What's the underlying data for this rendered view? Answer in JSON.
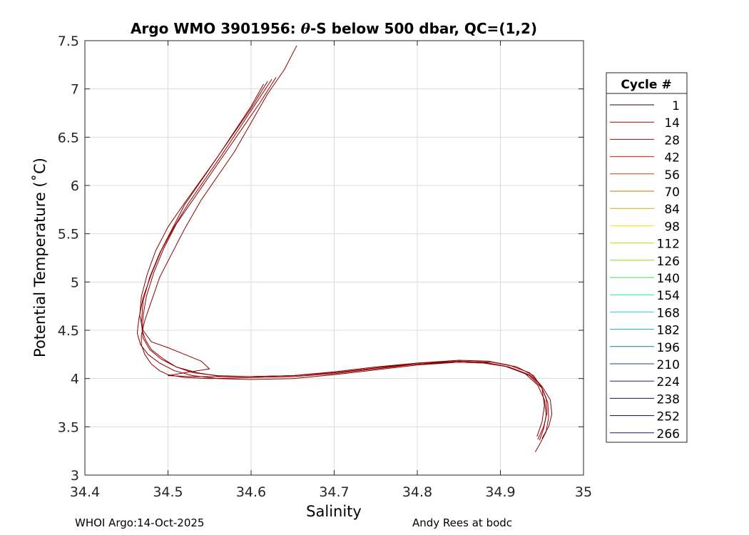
{
  "chart_data": {
    "type": "line",
    "title_prefix": "Argo WMO 3901956: ",
    "title_theta": "θ",
    "title_suffix": "-S below 500 dbar,  QC=(1,2)",
    "xlabel": "Salinity",
    "ylabel": "Potential Temperature (˚C)",
    "xlim": [
      34.4,
      35.0
    ],
    "ylim": [
      3.0,
      7.5
    ],
    "x_ticks": [
      "34.4",
      "34.5",
      "34.6",
      "34.7",
      "34.8",
      "34.9",
      "35"
    ],
    "y_ticks": [
      "3",
      "3.5",
      "4",
      "4.5",
      "5",
      "5.5",
      "6",
      "6.5",
      "7",
      "7.5"
    ],
    "grid": true,
    "legend_position": "right",
    "legend_title": "Cycle #",
    "legend_entries": [
      {
        "label": "1",
        "color": "#330000"
      },
      {
        "label": "14",
        "color": "#990000"
      },
      {
        "label": "28",
        "color": "#b30000"
      },
      {
        "label": "42",
        "color": "#cc1a00"
      },
      {
        "label": "56",
        "color": "#cc4000"
      },
      {
        "label": "70",
        "color": "#c87800"
      },
      {
        "label": "84",
        "color": "#d9a800"
      },
      {
        "label": "98",
        "color": "#f2e600"
      },
      {
        "label": "112",
        "color": "#b8e000"
      },
      {
        "label": "126",
        "color": "#7ddc30"
      },
      {
        "label": "140",
        "color": "#33e05a"
      },
      {
        "label": "154",
        "color": "#22e0b0"
      },
      {
        "label": "168",
        "color": "#22d8d8"
      },
      {
        "label": "182",
        "color": "#1ab0c0"
      },
      {
        "label": "196",
        "color": "#157a95"
      },
      {
        "label": "210",
        "color": "#1a4a80"
      },
      {
        "label": "224",
        "color": "#1a2570"
      },
      {
        "label": "238",
        "color": "#101a50"
      },
      {
        "label": "252",
        "color": "#0c0c38"
      },
      {
        "label": "266",
        "color": "#1a1a60"
      }
    ],
    "profile_color": "#8b0000",
    "series": [
      {
        "x": [
          34.655,
          34.64,
          34.62,
          34.6,
          34.58,
          34.56,
          34.54,
          34.52,
          34.505,
          34.49,
          34.48,
          34.472,
          34.468,
          34.468,
          34.472,
          34.48,
          34.49,
          34.5,
          34.52,
          34.55,
          34.6,
          34.65,
          34.7,
          34.75,
          34.8,
          34.85,
          34.88,
          34.91,
          34.935,
          34.95,
          34.957,
          34.958,
          34.955,
          34.948,
          34.942
        ],
        "y": [
          7.45,
          7.2,
          6.95,
          6.65,
          6.35,
          6.1,
          5.85,
          5.55,
          5.3,
          5.05,
          4.8,
          4.6,
          4.45,
          4.35,
          4.25,
          4.15,
          4.08,
          4.04,
          4.01,
          4.0,
          4.01,
          4.02,
          4.05,
          4.1,
          4.15,
          4.17,
          4.16,
          4.12,
          4.03,
          3.9,
          3.75,
          3.6,
          3.45,
          3.33,
          3.24
        ]
      },
      {
        "x": [
          34.63,
          34.61,
          34.59,
          34.57,
          34.55,
          34.53,
          34.51,
          34.495,
          34.483,
          34.474,
          34.47,
          34.469,
          34.473,
          34.48,
          34.495,
          34.51,
          34.53,
          34.56,
          34.6,
          34.65,
          34.7,
          34.75,
          34.8,
          34.85,
          34.88,
          34.905,
          34.93,
          34.945,
          34.953,
          34.955,
          34.952,
          34.947
        ],
        "y": [
          7.12,
          6.85,
          6.6,
          6.35,
          6.1,
          5.85,
          5.6,
          5.35,
          5.1,
          4.85,
          4.65,
          4.5,
          4.4,
          4.3,
          4.2,
          4.12,
          4.06,
          4.03,
          4.02,
          4.03,
          4.06,
          4.11,
          4.15,
          4.18,
          4.17,
          4.13,
          4.05,
          3.93,
          3.78,
          3.62,
          3.48,
          3.36
        ]
      },
      {
        "x": [
          34.625,
          34.605,
          34.585,
          34.565,
          34.545,
          34.525,
          34.508,
          34.492,
          34.48,
          34.47,
          34.465,
          34.463,
          34.467,
          34.476,
          34.49,
          34.508,
          34.53,
          34.56,
          34.6,
          34.65,
          34.7,
          34.75,
          34.8,
          34.85,
          34.885,
          34.91,
          34.935,
          34.95,
          34.96,
          34.962,
          34.958,
          34.95
        ],
        "y": [
          7.1,
          6.84,
          6.58,
          6.32,
          6.07,
          5.82,
          5.58,
          5.33,
          5.08,
          4.84,
          4.62,
          4.47,
          4.35,
          4.25,
          4.16,
          4.08,
          4.03,
          4.0,
          3.99,
          4.0,
          4.04,
          4.09,
          4.14,
          4.17,
          4.16,
          4.12,
          4.04,
          3.92,
          3.78,
          3.63,
          3.5,
          3.38
        ]
      },
      {
        "x": [
          34.62,
          34.6,
          34.58,
          34.56,
          34.54,
          34.52,
          34.505,
          34.49,
          34.478,
          34.47,
          34.468,
          34.47,
          34.478,
          34.492,
          34.51,
          34.535,
          34.565,
          34.6,
          34.65,
          34.7,
          34.75,
          34.8,
          34.85,
          34.885,
          34.91,
          34.935,
          34.948,
          34.955,
          34.956,
          34.952,
          34.945
        ],
        "y": [
          7.08,
          6.8,
          6.55,
          6.3,
          6.05,
          5.8,
          5.55,
          5.3,
          5.05,
          4.8,
          4.58,
          4.42,
          4.3,
          4.2,
          4.12,
          4.06,
          4.02,
          4.02,
          4.03,
          4.07,
          4.12,
          4.16,
          4.19,
          4.18,
          4.14,
          4.06,
          3.94,
          3.8,
          3.64,
          3.5,
          3.37
        ]
      },
      {
        "x": [
          34.615,
          34.6,
          34.58,
          34.56,
          34.54,
          34.52,
          34.5,
          34.485,
          34.475,
          34.468,
          34.466,
          34.47,
          34.48,
          34.5,
          34.52,
          34.54,
          34.55,
          34.52,
          34.5,
          34.53,
          34.57,
          34.6,
          34.65,
          34.7,
          34.75,
          34.8,
          34.85,
          34.89,
          34.92,
          34.94,
          34.95,
          34.953,
          34.95,
          34.944
        ],
        "y": [
          7.05,
          6.82,
          6.56,
          6.3,
          6.06,
          5.82,
          5.57,
          5.32,
          5.08,
          4.85,
          4.65,
          4.5,
          4.38,
          4.32,
          4.25,
          4.18,
          4.1,
          4.06,
          4.03,
          4.02,
          4.02,
          4.02,
          4.03,
          4.06,
          4.11,
          4.16,
          4.18,
          4.17,
          4.12,
          4.03,
          3.9,
          3.72,
          3.55,
          3.4
        ]
      }
    ]
  },
  "footer": {
    "left": "WHOI Argo:14-Oct-2025",
    "right": "Andy Rees at bodc"
  }
}
